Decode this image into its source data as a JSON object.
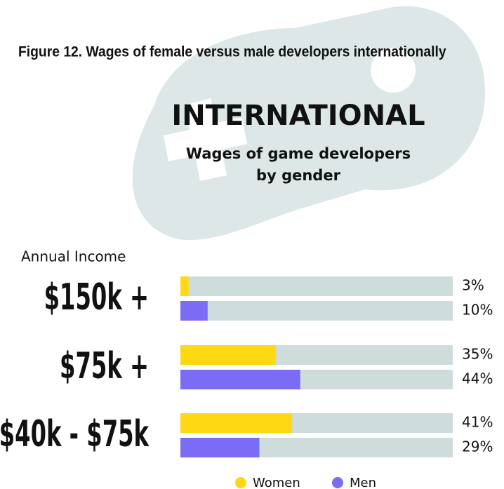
{
  "chart_data": {
    "type": "bar",
    "orientation": "horizontal",
    "title": "Figure 12. Wages of female versus male developers internationally",
    "heading": "INTERNATIONAL",
    "subtitle": [
      "Wages of game developers",
      "by gender"
    ],
    "y_label": "Annual Income",
    "categories": [
      "$150k +",
      "$75k +",
      "$40k - $75k"
    ],
    "series": [
      {
        "name": "Women",
        "color": "#FFD814",
        "values": [
          3,
          35,
          41
        ],
        "value_labels": [
          "3%",
          "35%",
          "41%"
        ]
      },
      {
        "name": "Men",
        "color": "#7A6CF4",
        "values": [
          10,
          44,
          29
        ],
        "value_labels": [
          "10%",
          "44%",
          "29%"
        ]
      }
    ],
    "xlim": [
      0,
      100
    ],
    "track_color": "#CFDCDC",
    "legend": "bottom"
  }
}
